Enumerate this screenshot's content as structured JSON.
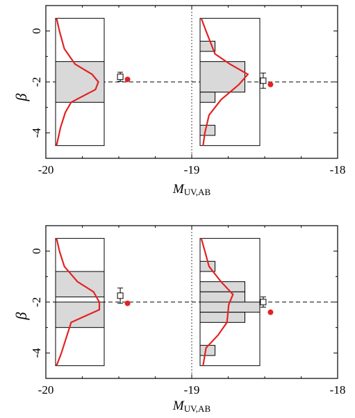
{
  "chart_data": [
    {
      "type": "bar",
      "title": "",
      "xlabel": "M",
      "xlabel_sub": "UV,AB",
      "ylabel": "β",
      "xlim": [
        -20,
        -18
      ],
      "ylim": [
        -5,
        1
      ],
      "x_ticks": [
        -20,
        -19,
        -18
      ],
      "x_tick_labels": [
        "-20",
        "-19",
        "-18"
      ],
      "y_ticks": [
        0,
        -2,
        -4
      ],
      "y_tick_labels": [
        "0",
        "-2",
        "-4"
      ],
      "reference_lines": {
        "vertical_x": -19,
        "horizontal_y": -2
      },
      "insets": [
        {
          "beta_range": [
            -4.5,
            0.5
          ],
          "bins": [
            {
              "lo": -2.8,
              "hi": -1.2,
              "count": 1.0
            }
          ],
          "curve": [
            [
              0.5,
              0.02
            ],
            [
              0.0,
              0.08
            ],
            [
              -0.7,
              0.18
            ],
            [
              -1.3,
              0.4
            ],
            [
              -1.7,
              0.75
            ],
            [
              -2.0,
              0.88
            ],
            [
              -2.3,
              0.82
            ],
            [
              -2.8,
              0.32
            ],
            [
              -3.2,
              0.2
            ],
            [
              -3.8,
              0.1
            ],
            [
              -4.5,
              0.02
            ]
          ],
          "marker_square": {
            "x": -19.49,
            "y": -1.8,
            "yerr": 0.18
          },
          "marker_dot": {
            "x": -19.44,
            "y": -1.9
          }
        },
        {
          "beta_range": [
            -4.5,
            0.5
          ],
          "bins": [
            {
              "lo": -0.8,
              "hi": -0.4,
              "count": 0.25
            },
            {
              "lo": -1.2,
              "hi": -0.8,
              "count": 0.0
            },
            {
              "lo": -2.4,
              "hi": -1.2,
              "count": 0.75
            },
            {
              "lo": -2.8,
              "hi": -2.4,
              "count": 0.25
            },
            {
              "lo": -3.7,
              "hi": -3.3,
              "count": 0.0
            },
            {
              "lo": -4.1,
              "hi": -3.7,
              "count": 0.25
            }
          ],
          "curve": [
            [
              0.5,
              0.02
            ],
            [
              0.0,
              0.1
            ],
            [
              -0.9,
              0.25
            ],
            [
              -1.3,
              0.5
            ],
            [
              -1.7,
              0.8
            ],
            [
              -2.1,
              0.65
            ],
            [
              -2.7,
              0.35
            ],
            [
              -3.3,
              0.15
            ],
            [
              -4.0,
              0.08
            ],
            [
              -4.5,
              0.05
            ]
          ],
          "marker_square": {
            "x": -18.51,
            "y": -1.95,
            "yerr": 0.3
          },
          "marker_dot": {
            "x": -18.46,
            "y": -2.1
          }
        }
      ]
    },
    {
      "type": "bar",
      "title": "",
      "xlabel": "M",
      "xlabel_sub": "UV,AB",
      "ylabel": "β",
      "xlim": [
        -20,
        -18
      ],
      "ylim": [
        -5,
        1
      ],
      "x_ticks": [
        -20,
        -19,
        -18
      ],
      "x_tick_labels": [
        "-20",
        "-19",
        "-18"
      ],
      "y_ticks": [
        0,
        -2,
        -4
      ],
      "y_tick_labels": [
        "0",
        "-2",
        "-4"
      ],
      "reference_lines": {
        "vertical_x": -19,
        "horizontal_y": -2
      },
      "insets": [
        {
          "beta_range": [
            -4.5,
            0.5
          ],
          "bins": [
            {
              "lo": -1.8,
              "hi": -0.8,
              "count": 1.0
            },
            {
              "lo": -2.0,
              "hi": -1.8,
              "count": 0.0
            },
            {
              "lo": -3.0,
              "hi": -2.0,
              "count": 1.0
            }
          ],
          "curve": [
            [
              0.5,
              0.02
            ],
            [
              0.0,
              0.08
            ],
            [
              -0.6,
              0.18
            ],
            [
              -1.2,
              0.45
            ],
            [
              -1.6,
              0.78
            ],
            [
              -2.0,
              0.9
            ],
            [
              -2.3,
              0.9
            ],
            [
              -2.8,
              0.32
            ],
            [
              -3.4,
              0.22
            ],
            [
              -4.0,
              0.12
            ],
            [
              -4.5,
              0.02
            ]
          ],
          "marker_square": {
            "x": -19.49,
            "y": -1.75,
            "yerr": 0.3
          },
          "marker_dot": {
            "x": -19.44,
            "y": -2.05
          }
        },
        {
          "beta_range": [
            -4.5,
            0.5
          ],
          "bins": [
            {
              "lo": -0.8,
              "hi": -0.4,
              "count": 0.25
            },
            {
              "lo": -1.2,
              "hi": -0.8,
              "count": 0.0
            },
            {
              "lo": -1.6,
              "hi": -1.2,
              "count": 0.75
            },
            {
              "lo": -2.0,
              "hi": -1.6,
              "count": 0.75
            },
            {
              "lo": -2.4,
              "hi": -2.0,
              "count": 1.0
            },
            {
              "lo": -2.8,
              "hi": -2.4,
              "count": 0.75
            },
            {
              "lo": -3.7,
              "hi": -3.3,
              "count": 0.0
            },
            {
              "lo": -4.1,
              "hi": -3.7,
              "count": 0.25
            }
          ],
          "curve": [
            [
              0.5,
              0.02
            ],
            [
              0.0,
              0.08
            ],
            [
              -0.6,
              0.15
            ],
            [
              -1.2,
              0.35
            ],
            [
              -1.7,
              0.55
            ],
            [
              -2.1,
              0.48
            ],
            [
              -2.8,
              0.45
            ],
            [
              -3.3,
              0.3
            ],
            [
              -3.8,
              0.1
            ],
            [
              -4.5,
              0.05
            ]
          ],
          "marker_square": {
            "x": -18.51,
            "y": -2.0,
            "yerr": 0.2
          },
          "marker_dot": {
            "x": -18.46,
            "y": -2.4
          }
        }
      ]
    }
  ]
}
